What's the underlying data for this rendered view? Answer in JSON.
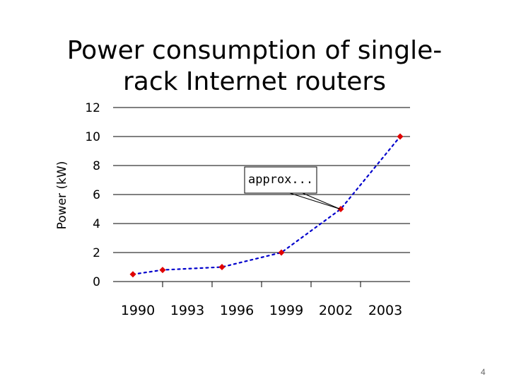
{
  "slide": {
    "page_number": "4"
  },
  "chart_data": {
    "type": "line",
    "title": "Power consumption of single-rack Internet routers",
    "title_lines": [
      "Power consumption of single-",
      "rack Internet routers"
    ],
    "xlabel": "",
    "ylabel": "Power (kW)",
    "ylim": [
      0,
      12
    ],
    "yticks": [
      0,
      2,
      4,
      6,
      8,
      10,
      12
    ],
    "categories": [
      "1990",
      "1993",
      "1996",
      "1999",
      "2002",
      "2003"
    ],
    "grid": "horizontal",
    "series": [
      {
        "points": [
          {
            "x": 1990,
            "y": 0.5
          },
          {
            "x": 1991.5,
            "y": 0.8
          },
          {
            "x": 1994.5,
            "y": 1.0
          },
          {
            "x": 1997.5,
            "y": 2.0
          },
          {
            "x": 2000.5,
            "y": 5.0
          },
          {
            "x": 2003.5,
            "y": 10.0
          }
        ],
        "color": "#0000cc",
        "line_style": "dotted",
        "marker": "diamond",
        "marker_color": "#e00000"
      }
    ],
    "annotations": [
      {
        "text": "approx...",
        "target": {
          "x": 2000.5,
          "y": 5.0
        }
      }
    ]
  }
}
